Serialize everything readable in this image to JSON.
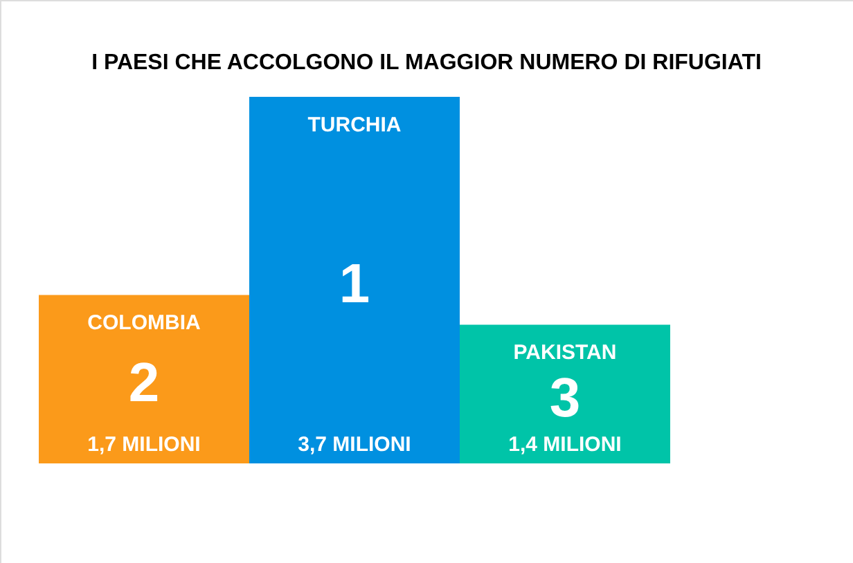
{
  "chart_data": {
    "type": "bar",
    "title": "I PAESI CHE ACCOLGONO IL MAGGIOR NUMERO DI RIFUGIATI",
    "categories": [
      "COLOMBIA",
      "TURCHIA",
      "PAKISTAN"
    ],
    "values": [
      1.7,
      3.7,
      1.4
    ],
    "value_labels": [
      "1,7 MILIONI",
      "3,7 MILIONI",
      "1,4 MILIONI"
    ],
    "colors": [
      "#fb9a1a",
      "#0090e0",
      "#00c4a8"
    ],
    "annotations": [
      "2",
      "1",
      "3"
    ]
  }
}
